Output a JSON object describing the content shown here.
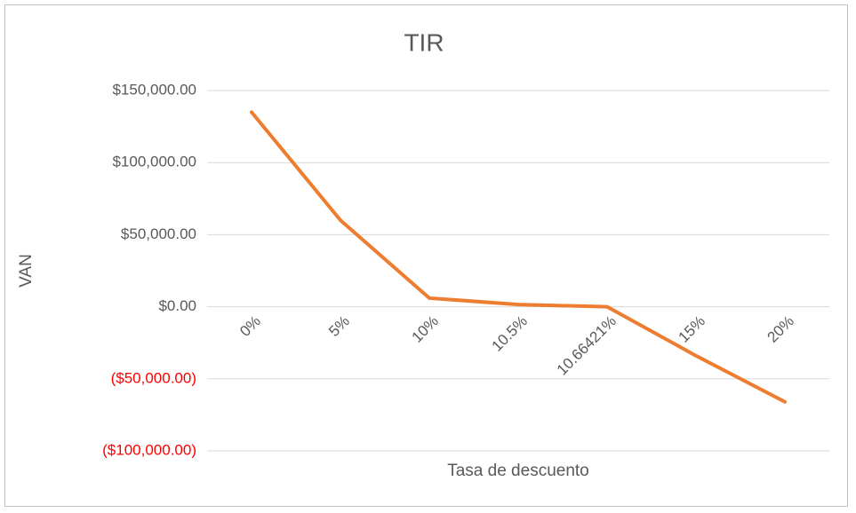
{
  "chart_data": {
    "type": "line",
    "title": "TIR",
    "x_label": "Tasa de descuento",
    "y_label": "VAN",
    "categories": [
      "0%",
      "5%",
      "10%",
      "10.5%",
      "10.66421%",
      "15%",
      "20%"
    ],
    "series": [
      {
        "name": "VAN",
        "color": "#ed7d31",
        "values": [
          135000,
          60000,
          6000,
          1500,
          0,
          -34000,
          -66000
        ]
      }
    ],
    "ylim": [
      -100000,
      150000
    ],
    "yticks": [
      {
        "value": -100000,
        "label": "($100,000.00)"
      },
      {
        "value": -50000,
        "label": "($50,000.00)"
      },
      {
        "value": 0,
        "label": "$0.00"
      },
      {
        "value": 50000,
        "label": "$50,000.00"
      },
      {
        "value": 100000,
        "label": "$100,000.00"
      },
      {
        "value": 150000,
        "label": "$150,000.00"
      }
    ],
    "grid": true,
    "negative_tick_color": "#ff0000"
  }
}
